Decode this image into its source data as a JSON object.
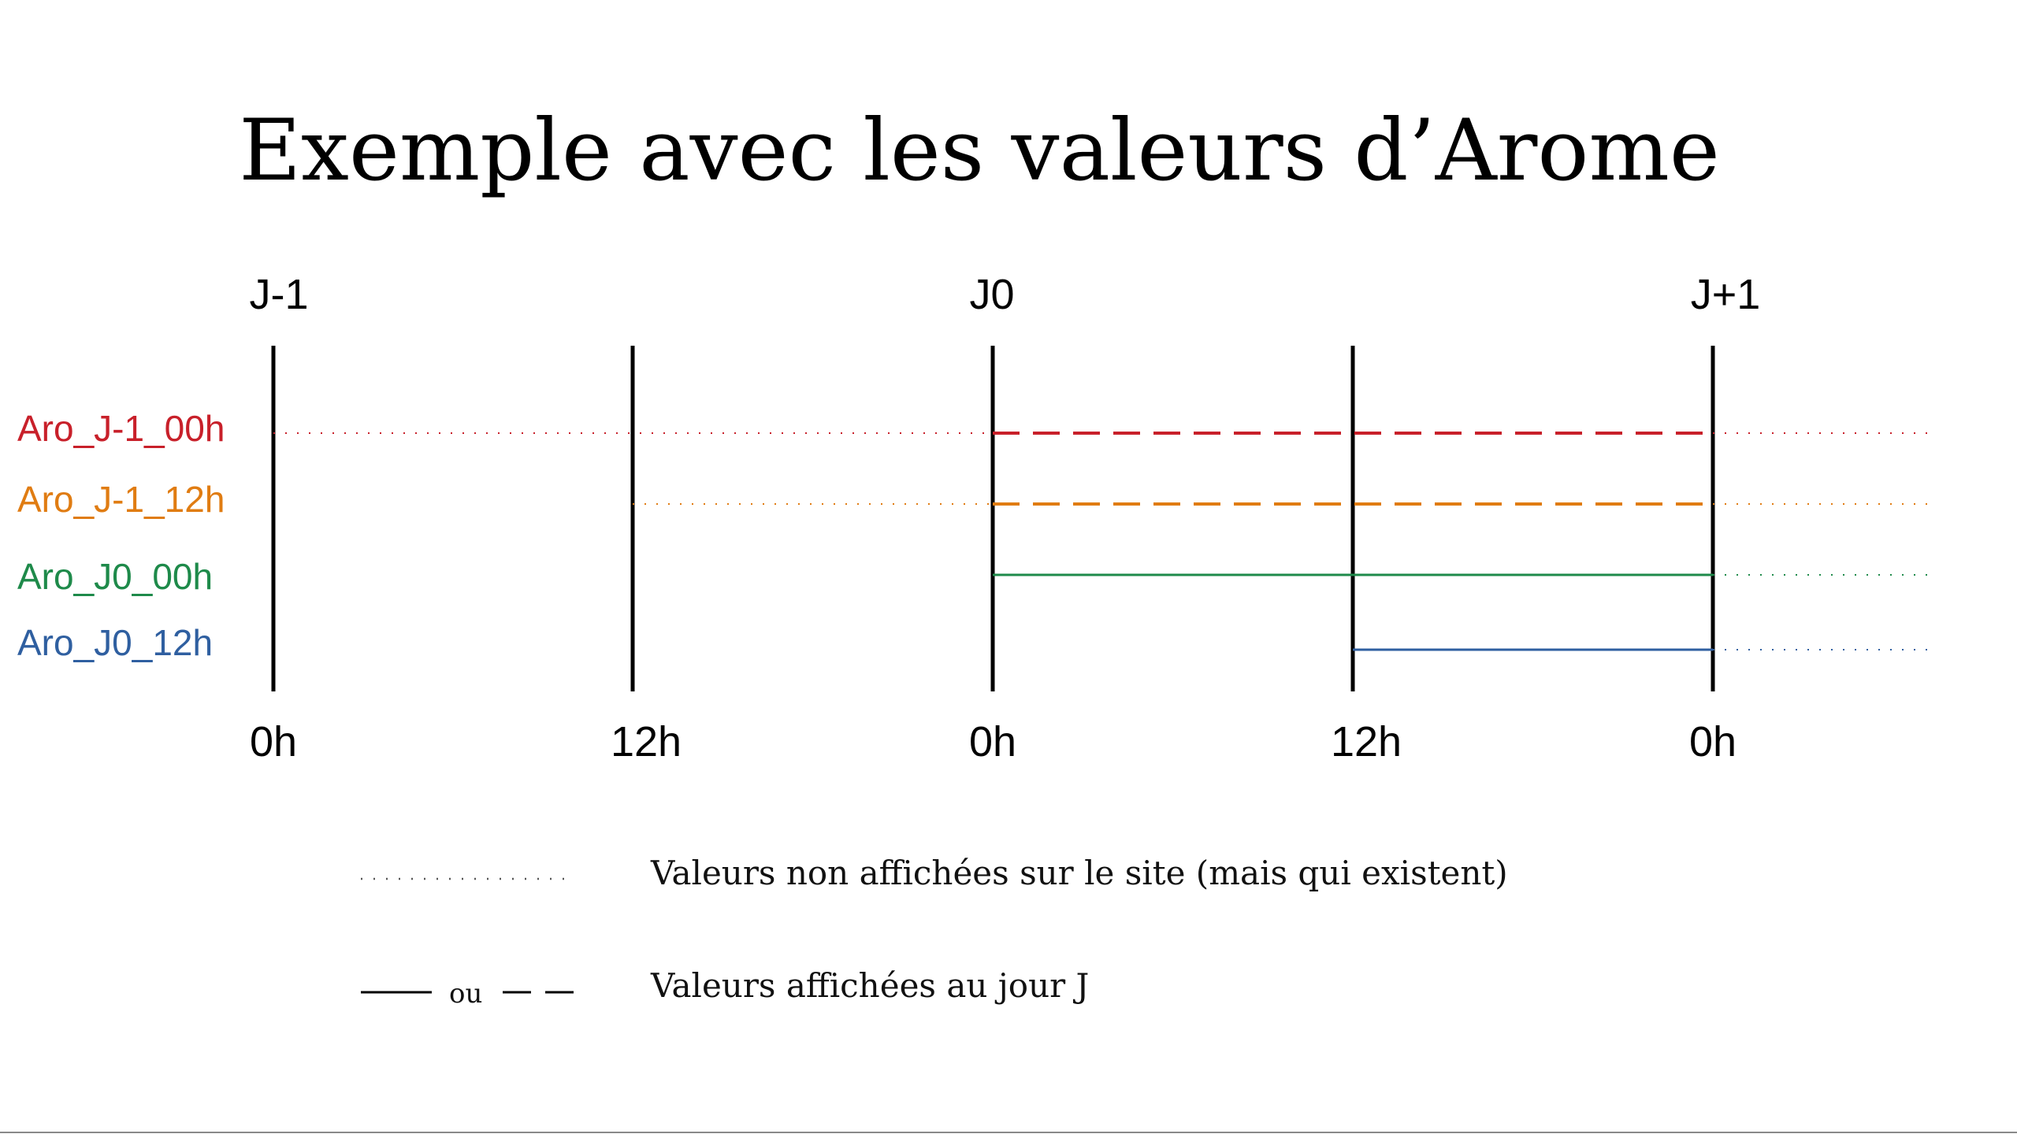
{
  "title": "Exemple avec les valeurs d’Arome",
  "timeline": {
    "days": [
      "J-1",
      "J0",
      "J+1"
    ],
    "ticks": [
      "0h",
      "12h",
      "0h",
      "12h",
      "0h"
    ]
  },
  "runs": [
    {
      "name": "Aro_J-1_00h",
      "color": "#c8202a",
      "start_tick": 0,
      "displayed": "dashed"
    },
    {
      "name": "Aro_J-1_12h",
      "color": "#e07c12",
      "start_tick": 1,
      "displayed": "dashed"
    },
    {
      "name": "Aro_J0_00h",
      "color": "#1e8a4a",
      "start_tick": 2,
      "displayed": "solid"
    },
    {
      "name": "Aro_J0_12h",
      "color": "#2f5fa0",
      "start_tick": 3,
      "displayed": "solid"
    }
  ],
  "legend": {
    "dotted_label": "Valeurs non affichées sur le site (mais qui existent)",
    "solid_or_dashed_label": "Valeurs affichées au jour J",
    "or_word": "ou"
  }
}
